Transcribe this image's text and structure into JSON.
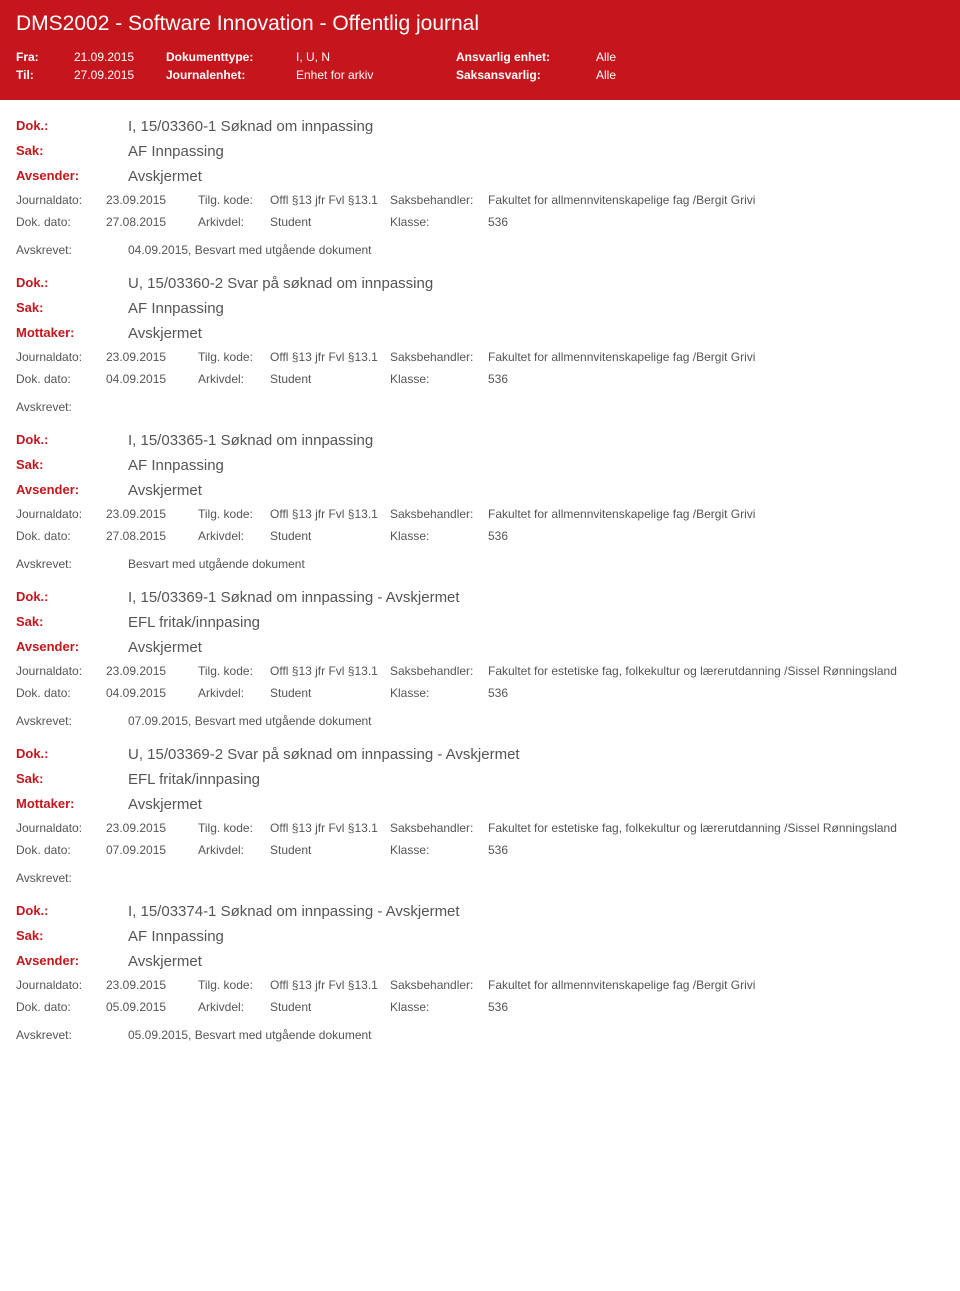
{
  "header": {
    "title": "DMS2002 - Software Innovation - Offentlig journal",
    "fra_label": "Fra:",
    "fra_value": "21.09.2015",
    "til_label": "Til:",
    "til_value": "27.09.2015",
    "dokumenttype_label": "Dokumenttype:",
    "dokumenttype_value": "I, U, N",
    "journalenhet_label": "Journalenhet:",
    "journalenhet_value": "Enhet for arkiv",
    "ansvarlig_label": "Ansvarlig enhet:",
    "ansvarlig_value": "Alle",
    "saksansvarlig_label": "Saksansvarlig:",
    "saksansvarlig_value": "Alle"
  },
  "labels": {
    "dok": "Dok.:",
    "sak": "Sak:",
    "avsender": "Avsender:",
    "mottaker": "Mottaker:",
    "journaldato": "Journaldato:",
    "tilgkode": "Tilg. kode:",
    "saksbehandler": "Saksbehandler:",
    "dokdato": "Dok. dato:",
    "arkivdel": "Arkivdel:",
    "klasse": "Klasse:",
    "avskrevet": "Avskrevet:"
  },
  "entries": [
    {
      "dok": "I, 15/03360-1 Søknad om innpassing",
      "sak": "AF Innpassing",
      "party_label": "Avsender:",
      "party_value": "Avskjermet",
      "journaldato": "23.09.2015",
      "tilgkode": "Offl §13 jfr Fvl §13.1",
      "saksbehandler": "Fakultet for allmennvitenskapelige fag /Bergit Grivi",
      "dokdato": "27.08.2015",
      "arkivdel": "Student",
      "klasse": "536",
      "avskrevet": "04.09.2015, Besvart med utgående dokument"
    },
    {
      "dok": "U, 15/03360-2 Svar på søknad om innpassing",
      "sak": "AF Innpassing",
      "party_label": "Mottaker:",
      "party_value": "Avskjermet",
      "journaldato": "23.09.2015",
      "tilgkode": "Offl §13 jfr Fvl §13.1",
      "saksbehandler": "Fakultet for allmennvitenskapelige fag /Bergit Grivi",
      "dokdato": "04.09.2015",
      "arkivdel": "Student",
      "klasse": "536",
      "avskrevet": ""
    },
    {
      "dok": "I, 15/03365-1 Søknad om innpassing",
      "sak": "AF Innpassing",
      "party_label": "Avsender:",
      "party_value": "Avskjermet",
      "journaldato": "23.09.2015",
      "tilgkode": "Offl §13 jfr Fvl §13.1",
      "saksbehandler": "Fakultet for allmennvitenskapelige fag /Bergit Grivi",
      "dokdato": "27.08.2015",
      "arkivdel": "Student",
      "klasse": "536",
      "avskrevet": "Besvart med utgående dokument"
    },
    {
      "dok": "I, 15/03369-1 Søknad om innpassing - Avskjermet",
      "sak": "EFL fritak/innpasing",
      "party_label": "Avsender:",
      "party_value": "Avskjermet",
      "journaldato": "23.09.2015",
      "tilgkode": "Offl §13 jfr Fvl §13.1",
      "saksbehandler": "Fakultet for estetiske fag, folkekultur og lærerutdanning /Sissel Rønningsland",
      "dokdato": "04.09.2015",
      "arkivdel": "Student",
      "klasse": "536",
      "avskrevet": "07.09.2015, Besvart med utgående dokument"
    },
    {
      "dok": "U, 15/03369-2 Svar på søknad om innpassing - Avskjermet",
      "sak": "EFL fritak/innpasing",
      "party_label": "Mottaker:",
      "party_value": "Avskjermet",
      "journaldato": "23.09.2015",
      "tilgkode": "Offl §13 jfr Fvl §13.1",
      "saksbehandler": "Fakultet for estetiske fag, folkekultur og lærerutdanning /Sissel Rønningsland",
      "dokdato": "07.09.2015",
      "arkivdel": "Student",
      "klasse": "536",
      "avskrevet": ""
    },
    {
      "dok": "I, 15/03374-1 Søknad om innpassing - Avskjermet",
      "sak": "AF Innpassing",
      "party_label": "Avsender:",
      "party_value": "Avskjermet",
      "journaldato": "23.09.2015",
      "tilgkode": "Offl §13 jfr Fvl §13.1",
      "saksbehandler": "Fakultet for allmennvitenskapelige fag /Bergit Grivi",
      "dokdato": "05.09.2015",
      "arkivdel": "Student",
      "klasse": "536",
      "avskrevet": "05.09.2015, Besvart med utgående dokument"
    }
  ]
}
